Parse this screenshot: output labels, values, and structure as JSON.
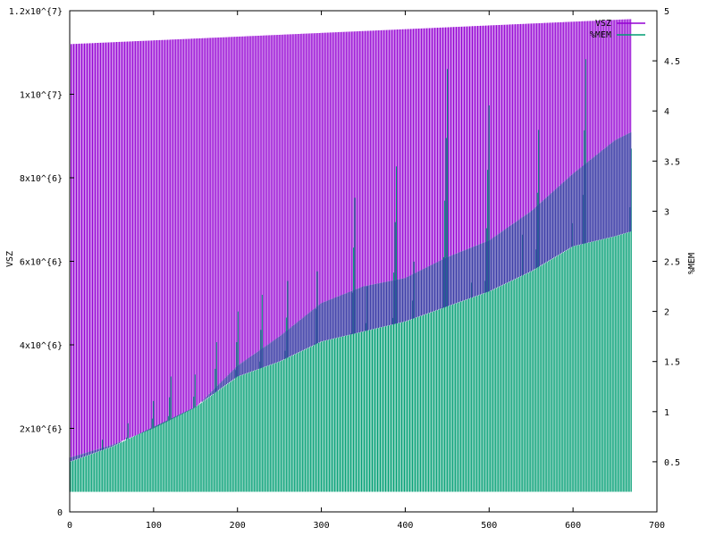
{
  "chart_data": {
    "type": "area",
    "title": "",
    "xlabel": "",
    "ylabel": "VSZ",
    "y2label": "%MEM",
    "xlim": [
      0,
      700
    ],
    "ylim": [
      0,
      12000000
    ],
    "y2lim": [
      0,
      5
    ],
    "x_ticks": [
      0,
      100,
      200,
      300,
      400,
      500,
      600,
      700
    ],
    "x_tick_labels": [
      "0",
      "100",
      "200",
      "300",
      "400",
      "500",
      "600",
      "700"
    ],
    "y_ticks": [
      0,
      2000000,
      4000000,
      6000000,
      8000000,
      10000000,
      12000000
    ],
    "y_tick_labels": [
      "0",
      "2x10^{6}",
      "4x10^{6}",
      "6x10^{6}",
      "8x10^{6}",
      "1x10^{7}",
      "1.2x10^{7}"
    ],
    "y2_ticks": [
      0.5,
      1,
      1.5,
      2,
      2.5,
      3,
      3.5,
      4,
      4.5,
      5
    ],
    "y2_tick_labels": [
      "0.5",
      "1",
      "1.5",
      "2",
      "2.5",
      "3",
      "3.5",
      "4",
      "4.5",
      "5"
    ],
    "grid": false,
    "legend_position": "top-right",
    "x_range": [
      0,
      670
    ],
    "series": [
      {
        "name": "VSZ",
        "axis": "y",
        "color": "#9400d3",
        "high_envelope": [
          [
            0,
            11200000
          ],
          [
            670,
            11800000
          ]
        ],
        "low_envelope": [
          [
            0,
            1300000
          ],
          [
            50,
            1600000
          ],
          [
            100,
            2000000
          ],
          [
            150,
            2500000
          ],
          [
            200,
            3500000
          ],
          [
            250,
            4200000
          ],
          [
            300,
            5000000
          ],
          [
            350,
            5400000
          ],
          [
            400,
            5600000
          ],
          [
            450,
            6100000
          ],
          [
            500,
            6500000
          ],
          [
            550,
            7200000
          ],
          [
            600,
            8100000
          ],
          [
            650,
            8900000
          ],
          [
            670,
            9100000
          ]
        ]
      },
      {
        "name": "%MEM",
        "axis": "y2",
        "color": "#009e73",
        "high_envelope": [
          [
            0,
            0.5
          ],
          [
            50,
            0.65
          ],
          [
            100,
            0.85
          ],
          [
            150,
            1.05
          ],
          [
            200,
            1.35
          ],
          [
            250,
            1.5
          ],
          [
            300,
            1.7
          ],
          [
            350,
            1.8
          ],
          [
            400,
            1.9
          ],
          [
            450,
            2.05
          ],
          [
            500,
            2.2
          ],
          [
            550,
            2.4
          ],
          [
            600,
            2.65
          ],
          [
            650,
            2.75
          ],
          [
            670,
            2.8
          ]
        ],
        "low_envelope": [
          [
            0,
            0.2
          ],
          [
            670,
            0.2
          ]
        ],
        "spikes": [
          [
            40,
            0.85
          ],
          [
            70,
            1.0
          ],
          [
            100,
            1.2
          ],
          [
            120,
            1.35
          ],
          [
            150,
            1.55
          ],
          [
            175,
            1.8
          ],
          [
            200,
            2.0
          ],
          [
            230,
            2.45
          ],
          [
            260,
            2.5
          ],
          [
            295,
            2.55
          ],
          [
            340,
            3.4
          ],
          [
            355,
            2.6
          ],
          [
            390,
            3.9
          ],
          [
            410,
            2.6
          ],
          [
            450,
            4.6
          ],
          [
            480,
            2.7
          ],
          [
            500,
            4.4
          ],
          [
            540,
            3.0
          ],
          [
            560,
            4.5
          ],
          [
            600,
            3.4
          ],
          [
            615,
            4.8
          ],
          [
            670,
            4.1
          ]
        ]
      }
    ],
    "overlap_color": "#3f3fa8"
  }
}
